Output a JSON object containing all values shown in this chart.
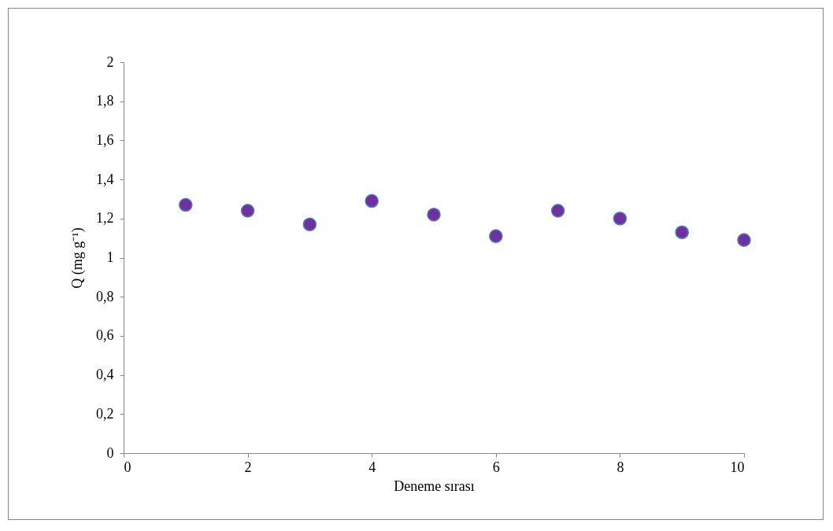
{
  "chart_data": {
    "type": "scatter",
    "xlabel": "Deneme sırası",
    "ylabel": "Q (mg g⁻¹)",
    "x": [
      1,
      2,
      3,
      4,
      5,
      6,
      7,
      8,
      9,
      10
    ],
    "series": [
      {
        "color": "#7030a0",
        "values": [
          1.27,
          1.24,
          1.17,
          1.29,
          1.22,
          1.11,
          1.24,
          1.2,
          1.13,
          1.09
        ]
      }
    ],
    "xlim": [
      0,
      10
    ],
    "xticks": [
      0,
      2,
      4,
      6,
      8,
      10
    ],
    "ylim": [
      0,
      2
    ],
    "yticks": [
      0,
      {
        "value": 0.2,
        "label": "0,2"
      },
      {
        "value": 0.4,
        "label": "0,4"
      },
      {
        "value": 0.6,
        "label": "0,6"
      },
      {
        "value": 0.8,
        "label": "0,8"
      },
      1,
      {
        "value": 1.2,
        "label": "1,2"
      },
      {
        "value": 1.4,
        "label": "1,4"
      },
      {
        "value": 1.6,
        "label": "1,6"
      },
      {
        "value": 1.8,
        "label": "1,8"
      },
      2
    ],
    "grid": false,
    "legend": false,
    "marker": "circle"
  }
}
